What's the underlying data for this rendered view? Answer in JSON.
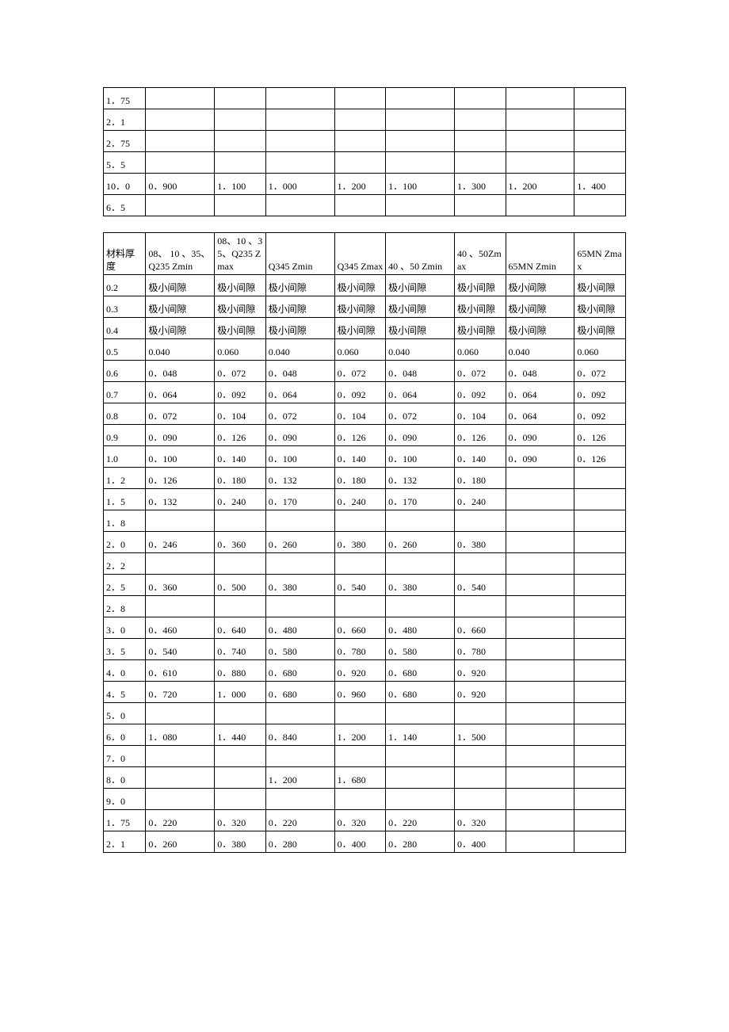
{
  "tables": {
    "top": {
      "col_widths_class": [
        "c0",
        "c1",
        "c2",
        "c3",
        "c4",
        "c5",
        "c6",
        "c7",
        "c8"
      ],
      "rows": [
        [
          "1．75",
          "",
          "",
          "",
          "",
          "",
          "",
          "",
          ""
        ],
        [
          "2．1",
          "",
          "",
          "",
          "",
          "",
          "",
          "",
          ""
        ],
        [
          "2．75",
          "",
          "",
          "",
          "",
          "",
          "",
          "",
          ""
        ],
        [
          "5．5",
          "",
          "",
          "",
          "",
          "",
          "",
          "",
          ""
        ],
        [
          "10．0",
          "0．900",
          "1．100",
          "1．000",
          "1．200",
          "1．100",
          "1．300",
          "1．200",
          "1．400"
        ],
        [
          "6．5",
          "",
          "",
          "",
          "",
          "",
          "",
          "",
          ""
        ]
      ]
    },
    "bottom": {
      "col_widths_class": [
        "c0",
        "c1",
        "c2",
        "c3",
        "c4",
        "c5",
        "c6",
        "c7",
        "c8"
      ],
      "rows": [
        [
          "材料厚度",
          "08、 10 、35、 Q235 Zmin",
          "08、10 、35、Q235 Zmax",
          "Q345   Zmin",
          "Q345   Zmax",
          "40 、50   Zmin",
          "40 、50Zmax",
          "65MN   Zmin",
          "65MN   Zmax"
        ],
        [
          "0.2",
          "极小间隙",
          "极小间隙",
          "极小间隙",
          "极小间隙",
          "极小间隙",
          "极小间隙",
          "极小间隙",
          "极小间隙"
        ],
        [
          "0.3",
          "极小间隙",
          "极小间隙",
          "极小间隙",
          "极小间隙",
          "极小间隙",
          "极小间隙",
          "极小间隙",
          "极小间隙"
        ],
        [
          "0.4",
          "极小间隙",
          "极小间隙",
          "极小间隙",
          "极小间隙",
          "极小间隙",
          "极小间隙",
          "极小间隙",
          "极小间隙"
        ],
        [
          "0.5",
          "0.040",
          "0.060",
          "0.040",
          "0.060",
          "0.040",
          "0.060",
          "0.040",
          "0.060"
        ],
        [
          "0.6",
          "0．048",
          "0．072",
          "0．048",
          "0．072",
          "0．048",
          "0．072",
          "0．048",
          "0．072"
        ],
        [
          "0.7",
          "0．064",
          "0．092",
          "0．064",
          "0．092",
          "0．064",
          "0．092",
          "0．064",
          "0．092"
        ],
        [
          "0.8",
          "0．072",
          "0．104",
          "0．072",
          "0．104",
          "0．072",
          "0．104",
          "0．064",
          "0．092"
        ],
        [
          "0.9",
          "0．090",
          "0．126",
          "0．090",
          "0．126",
          "0．090",
          "0．126",
          "0．090",
          "0．126"
        ],
        [
          "1.0",
          "0．100",
          "0．140",
          "0．100",
          "0．140",
          "0．100",
          "0．140",
          "0．090",
          "0．126"
        ],
        [
          "1．2",
          "0．126",
          "0．180",
          "0．132",
          "0．180",
          "0．132",
          "0．180",
          "",
          ""
        ],
        [
          "1．5",
          "0．132",
          "0．240",
          "0．170",
          "0．240",
          "0．170",
          "0．240",
          "",
          ""
        ],
        [
          "1．8",
          "",
          "",
          "",
          "",
          "",
          "",
          "",
          ""
        ],
        [
          "2．0",
          "0．246",
          "0．360",
          "0．260",
          "0．380",
          "0．260",
          "0．380",
          "",
          ""
        ],
        [
          "2．2",
          "",
          "",
          "",
          "",
          "",
          "",
          "",
          ""
        ],
        [
          "2．5",
          "0．360",
          "0．500",
          "0．380",
          "0．540",
          "0．380",
          "0．540",
          "",
          ""
        ],
        [
          "2．8",
          "",
          "",
          "",
          "",
          "",
          "",
          "",
          ""
        ],
        [
          "3．0",
          "0．460",
          "0．640",
          "0．480",
          "0．660",
          "0．480",
          "0．660",
          "",
          ""
        ],
        [
          "3．5",
          "0．540",
          "0．740",
          "0．580",
          "0．780",
          "0．580",
          "0．780",
          "",
          ""
        ],
        [
          "4．0",
          "0．610",
          "0．880",
          "0．680",
          "0．920",
          "0．680",
          "0．920",
          "",
          ""
        ],
        [
          "4．5",
          "0．720",
          "1．000",
          "0．680",
          "0．960",
          "0．680",
          "0．920",
          "",
          ""
        ],
        [
          "5．0",
          "",
          "",
          "",
          "",
          "",
          "",
          "",
          ""
        ],
        [
          "6．0",
          "1．080",
          "1．440",
          "0．840",
          "1．200",
          "1．140",
          "1．500",
          "",
          ""
        ],
        [
          "7．0",
          "",
          "",
          "",
          "",
          "",
          "",
          "",
          ""
        ],
        [
          "8．0",
          "",
          "",
          "1．200",
          "1．680",
          "",
          "",
          "",
          ""
        ],
        [
          "9．0",
          "",
          "",
          "",
          "",
          "",
          "",
          "",
          ""
        ],
        [
          "1．75",
          "0．220",
          "0．320",
          "0．220",
          "0．320",
          "0．220",
          "0．320",
          "",
          ""
        ],
        [
          "2．1",
          "0．260",
          "0．380",
          "0．280",
          "0．400",
          "0．280",
          "0．400",
          "",
          ""
        ]
      ]
    }
  }
}
